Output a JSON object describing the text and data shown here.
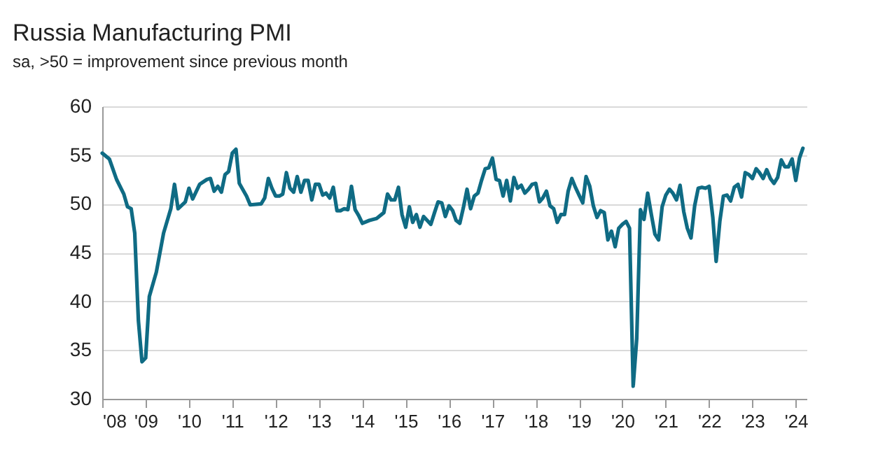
{
  "chart_data": {
    "type": "line",
    "title": "Russia Manufacturing PMI",
    "subtitle": "sa, >50 = improvement since previous month",
    "x": [
      "2008-01",
      "2008-03",
      "2008-05",
      "2008-07",
      "2008-08",
      "2008-09",
      "2008-10",
      "2008-11",
      "2008-12",
      "2009-01",
      "2009-02",
      "2009-04",
      "2009-06",
      "2009-08",
      "2009-09",
      "2009-10",
      "2009-12",
      "2010-01",
      "2010-02",
      "2010-04",
      "2010-06",
      "2010-07",
      "2010-08",
      "2010-09",
      "2010-10",
      "2010-11",
      "2010-12",
      "2011-01",
      "2011-02",
      "2011-03",
      "2011-05",
      "2011-06",
      "2011-09",
      "2011-10",
      "2011-11",
      "2011-12",
      "2012-01",
      "2012-02",
      "2012-03",
      "2012-04",
      "2012-05",
      "2012-06",
      "2012-07",
      "2012-08",
      "2012-09",
      "2012-10",
      "2012-11",
      "2012-12",
      "2013-01",
      "2013-02",
      "2013-03",
      "2013-04",
      "2013-05",
      "2013-06",
      "2013-07",
      "2013-08",
      "2013-09",
      "2013-10",
      "2013-11",
      "2013-12",
      "2014-01",
      "2014-03",
      "2014-05",
      "2014-07",
      "2014-08",
      "2014-09",
      "2014-10",
      "2014-11",
      "2014-12",
      "2015-01",
      "2015-02",
      "2015-03",
      "2015-04",
      "2015-05",
      "2015-06",
      "2015-07",
      "2015-08",
      "2015-09",
      "2015-10",
      "2015-11",
      "2015-12",
      "2016-01",
      "2016-02",
      "2016-03",
      "2016-04",
      "2016-05",
      "2016-06",
      "2016-07",
      "2016-08",
      "2016-09",
      "2016-10",
      "2016-11",
      "2016-12",
      "2017-01",
      "2017-02",
      "2017-03",
      "2017-04",
      "2017-05",
      "2017-06",
      "2017-07",
      "2017-08",
      "2017-09",
      "2017-10",
      "2017-11",
      "2017-12",
      "2018-01",
      "2018-02",
      "2018-03",
      "2018-04",
      "2018-05",
      "2018-06",
      "2018-07",
      "2018-08",
      "2018-09",
      "2018-10",
      "2018-11",
      "2018-12",
      "2019-01",
      "2019-02",
      "2019-03",
      "2019-04",
      "2019-05",
      "2019-06",
      "2019-07",
      "2019-08",
      "2019-09",
      "2019-10",
      "2019-11",
      "2019-12",
      "2020-01",
      "2020-02",
      "2020-03",
      "2020-04",
      "2020-05",
      "2020-06",
      "2020-07",
      "2020-08",
      "2020-09",
      "2020-10",
      "2020-11",
      "2020-12",
      "2021-01",
      "2021-02",
      "2021-03",
      "2021-04",
      "2021-05",
      "2021-06",
      "2021-07",
      "2021-08",
      "2021-09",
      "2021-10",
      "2021-11",
      "2021-12",
      "2022-01",
      "2022-02",
      "2022-03",
      "2022-04",
      "2022-05",
      "2022-06",
      "2022-07",
      "2022-08",
      "2022-09",
      "2022-10",
      "2022-11",
      "2022-12",
      "2023-01",
      "2023-02",
      "2023-03",
      "2023-04",
      "2023-05",
      "2023-06",
      "2023-07",
      "2023-08",
      "2023-09",
      "2023-10",
      "2023-11",
      "2023-12",
      "2024-01",
      "2024-02",
      "2024-03"
    ],
    "series": [
      {
        "color": "#0f6b84",
        "values": [
          55.2,
          54.6,
          52.5,
          51,
          49.7,
          49.5,
          47,
          38,
          33.8,
          34.2,
          40.5,
          43,
          47,
          49.5,
          52,
          49.5,
          50.2,
          51.6,
          50.5,
          52,
          52.5,
          52.6,
          51.3,
          51.8,
          51.2,
          53,
          53.3,
          55.2,
          55.6,
          52.1,
          50.8,
          49.9,
          50,
          50.6,
          52.6,
          51.6,
          50.8,
          50.8,
          51,
          53.2,
          51.6,
          51.2,
          52.8,
          51.2,
          52.4,
          52.4,
          50.4,
          52,
          52,
          50.9,
          51.1,
          50.6,
          51.7,
          49.3,
          49.3,
          49.5,
          49.4,
          51.8,
          49.4,
          48.8,
          48,
          48.3,
          48.5,
          49.1,
          51,
          50.4,
          50.4,
          51.7,
          48.9,
          47.6,
          49.7,
          48.1,
          48.9,
          47.6,
          48.7,
          48.3,
          47.9,
          49.1,
          50.2,
          50.1,
          48.7,
          49.8,
          49.3,
          48.3,
          48,
          49.6,
          51.5,
          49.5,
          50.8,
          51.1,
          52.4,
          53.6,
          53.7,
          54.7,
          52.5,
          52.4,
          50.8,
          52.4,
          50.3,
          52.7,
          51.6,
          51.9,
          51.1,
          51.5,
          52,
          52.1,
          50.2,
          50.6,
          51.3,
          49.8,
          49.5,
          48.1,
          48.9,
          48.9,
          51.3,
          52.6,
          51.7,
          50.9,
          50.1,
          52.8,
          51.8,
          49.8,
          48.6,
          49.3,
          49.1,
          46.3,
          47.2,
          45.6,
          47.5,
          47.9,
          48.2,
          47.5,
          31.3,
          36.2,
          49.4,
          48.4,
          51.1,
          48.9,
          46.9,
          46.3,
          49.7,
          50.9,
          51.5,
          51.1,
          50.4,
          51.9,
          49.2,
          47.5,
          46.5,
          49.8,
          51.6,
          51.7,
          51.6,
          51.8,
          48.6,
          44.1,
          48.2,
          50.8,
          50.9,
          50.3,
          51.7,
          52,
          50.7,
          53.2,
          53,
          52.6,
          53.6,
          53.2,
          52.6,
          53.5,
          52.6,
          52.1,
          52.7,
          54.5,
          53.8,
          53.8,
          54.6,
          52.4,
          54.7,
          55.7
        ]
      }
    ],
    "xlim": [
      "2008-01",
      "2024-04"
    ],
    "xticks": [
      {
        "value": "2008-01",
        "label": "'08"
      },
      {
        "value": "2009-01",
        "label": "'09"
      },
      {
        "value": "2010-01",
        "label": "'10"
      },
      {
        "value": "2011-01",
        "label": "'11"
      },
      {
        "value": "2012-01",
        "label": "'12"
      },
      {
        "value": "2013-01",
        "label": "'13"
      },
      {
        "value": "2014-01",
        "label": "'14"
      },
      {
        "value": "2015-01",
        "label": "'15"
      },
      {
        "value": "2016-01",
        "label": "'16"
      },
      {
        "value": "2017-01",
        "label": "'17"
      },
      {
        "value": "2018-01",
        "label": "'18"
      },
      {
        "value": "2019-01",
        "label": "'19"
      },
      {
        "value": "2020-01",
        "label": "'20"
      },
      {
        "value": "2021-01",
        "label": "'21"
      },
      {
        "value": "2022-01",
        "label": "'22"
      },
      {
        "value": "2023-01",
        "label": "'23"
      },
      {
        "value": "2024-01",
        "label": "'24"
      }
    ],
    "ylim": [
      30,
      60
    ],
    "yticks": [
      30,
      35,
      40,
      45,
      50,
      55,
      60
    ],
    "grid": "y",
    "marker": "none",
    "line_style": "solid"
  }
}
